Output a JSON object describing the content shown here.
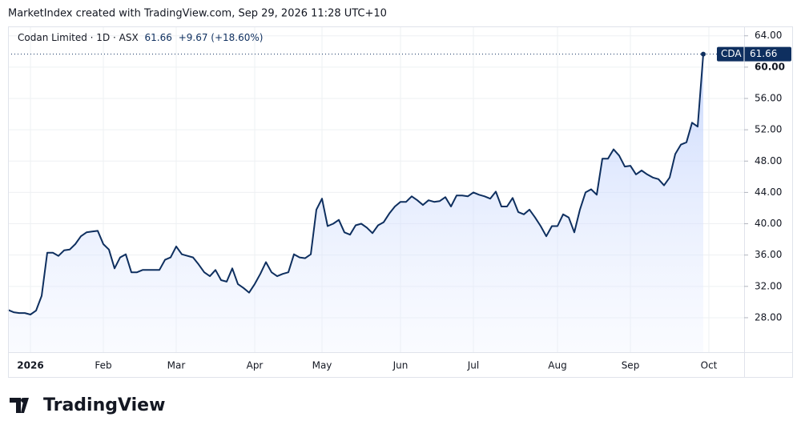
{
  "chart_data": {
    "type": "line",
    "attribution": "MarketIndex created with TradingView.com, Sep 29, 2026 11:28 UTC+10",
    "symbol": "CDA",
    "change": "+9.67 (+18.60%)",
    "brand": "TradingView",
    "categories": [
      null,
      null,
      null,
      null,
      "2026",
      null,
      null,
      null,
      null,
      null,
      null,
      null,
      null,
      null,
      null,
      null,
      null,
      "Feb",
      null,
      null,
      null,
      null,
      null,
      null,
      null,
      null,
      null,
      null,
      null,
      null,
      "Mar",
      null,
      null,
      null,
      null,
      null,
      null,
      null,
      null,
      null,
      null,
      null,
      null,
      null,
      "Apr",
      null,
      null,
      null,
      null,
      null,
      null,
      null,
      null,
      null,
      null,
      null,
      "May",
      null,
      null,
      null,
      null,
      null,
      null,
      null,
      null,
      null,
      null,
      null,
      null,
      null,
      "Jun",
      null,
      null,
      null,
      null,
      null,
      null,
      null,
      null,
      null,
      null,
      null,
      null,
      "Jul",
      null,
      null,
      null,
      null,
      null,
      null,
      null,
      null,
      null,
      null,
      null,
      null,
      null,
      null,
      "Aug",
      null,
      null,
      null,
      null,
      null,
      null,
      null,
      null,
      null,
      null,
      null,
      null,
      "Sep",
      null,
      null,
      null,
      null,
      null,
      null,
      null,
      null,
      null,
      null,
      null,
      null,
      null,
      "Oct"
    ],
    "series": [
      {
        "name": "Codan Limited · 1D · ASX",
        "color": "#0e2f5f",
        "values": [
          29.0,
          28.7,
          28.6,
          28.6,
          28.4,
          28.9,
          30.8,
          36.3,
          36.3,
          35.9,
          36.6,
          36.7,
          37.4,
          38.4,
          38.9,
          39.0,
          39.1,
          37.4,
          36.7,
          34.3,
          35.7,
          36.1,
          33.8,
          33.8,
          34.1,
          34.1,
          34.1,
          34.1,
          35.4,
          35.7,
          37.1,
          36.1,
          35.9,
          35.7,
          34.8,
          33.8,
          33.3,
          34.1,
          32.8,
          32.6,
          34.3,
          32.3,
          31.8,
          31.2,
          32.3,
          33.6,
          35.1,
          33.8,
          33.3,
          33.6,
          33.8,
          36.1,
          35.7,
          35.6,
          36.1,
          41.8,
          43.2,
          39.7,
          40.0,
          40.5,
          38.9,
          38.6,
          39.8,
          40.0,
          39.5,
          38.8,
          39.8,
          40.2,
          41.3,
          42.2,
          42.8,
          42.8,
          43.5,
          43.0,
          42.4,
          43.0,
          42.8,
          42.9,
          43.4,
          42.2,
          43.6,
          43.6,
          43.5,
          44.0,
          43.7,
          43.5,
          43.2,
          44.1,
          42.2,
          42.2,
          43.3,
          41.5,
          41.2,
          41.8,
          40.8,
          39.7,
          38.4,
          39.7,
          39.7,
          41.2,
          40.8,
          38.9,
          41.8,
          44.0,
          44.4,
          43.7,
          48.3,
          48.3,
          49.5,
          48.7,
          47.3,
          47.4,
          46.3,
          46.8,
          46.3,
          45.9,
          45.7,
          44.9,
          45.9,
          48.9,
          50.1,
          50.4,
          52.9,
          52.4,
          61.66,
          null
        ]
      }
    ],
    "ylim": [
      23.6,
      65.2
    ],
    "yticks": [
      {
        "value": 28,
        "label": "28.00"
      },
      {
        "value": 32,
        "label": "32.00"
      },
      {
        "value": 36,
        "label": "36.00"
      },
      {
        "value": 40,
        "label": "40.00"
      },
      {
        "value": 44,
        "label": "44.00"
      },
      {
        "value": 48,
        "label": "48.00"
      },
      {
        "value": 52,
        "label": "52.00"
      },
      {
        "value": 56,
        "label": "56.00"
      },
      {
        "value": 60,
        "label": "60.00"
      },
      {
        "value": 64,
        "label": "64.00"
      }
    ],
    "grid": true
  }
}
